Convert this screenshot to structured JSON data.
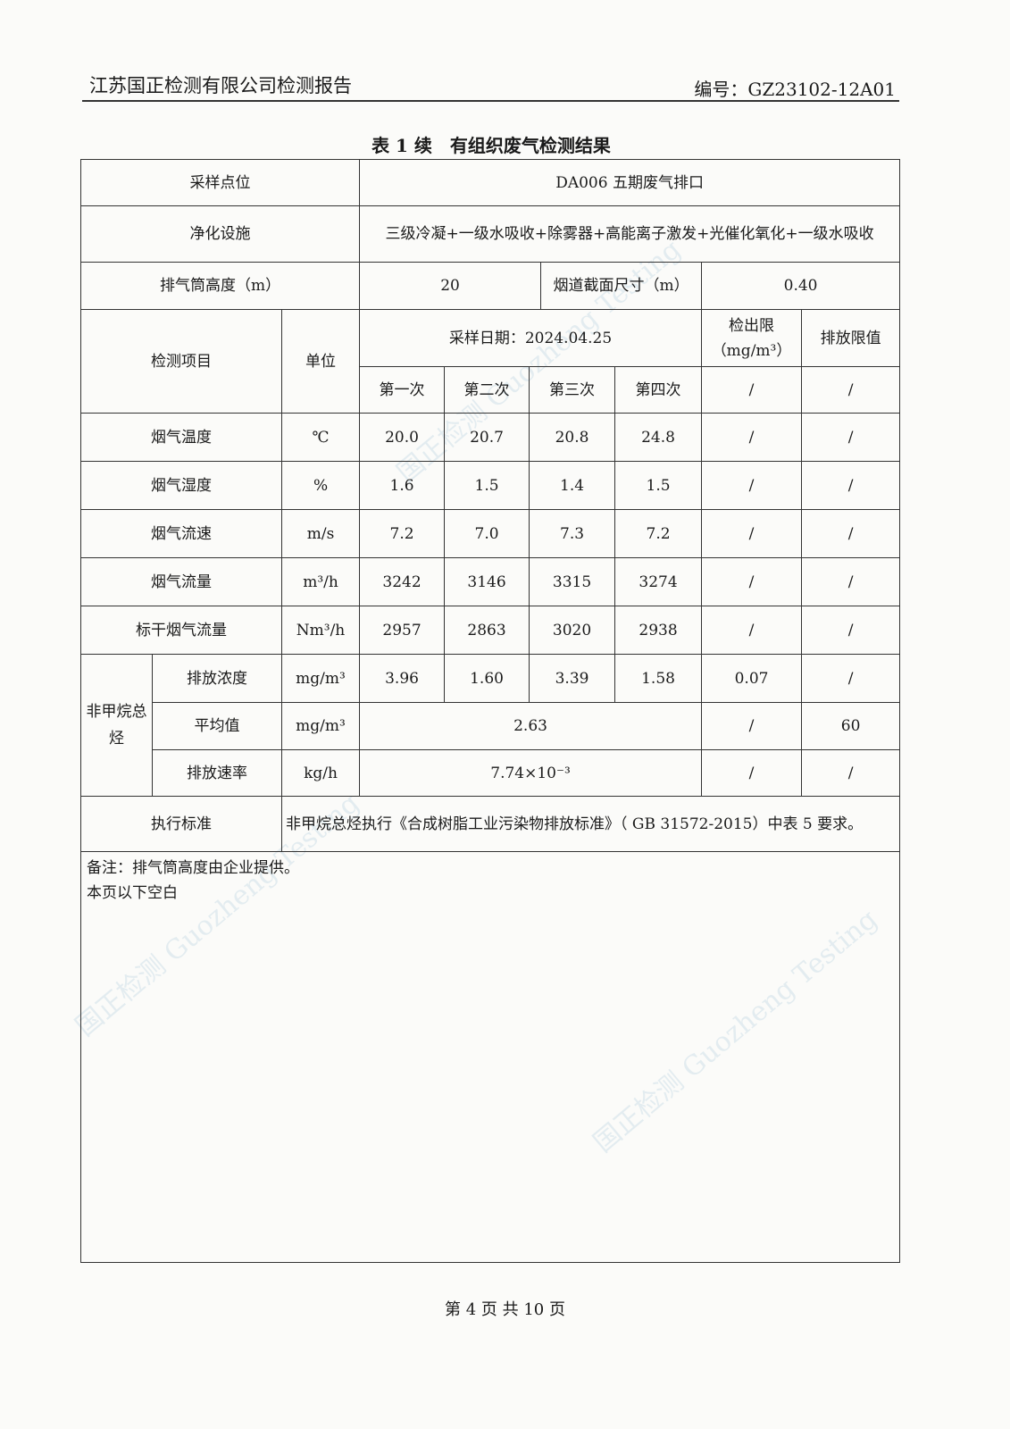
{
  "header": {
    "company": "江苏国正检测有限公司检测报告",
    "report_no": "编号：GZ23102-12A01"
  },
  "title": "表 1 续　有组织废气检测结果",
  "info": {
    "sampling_point_label": "采样点位",
    "sampling_point": "DA006 五期废气排口",
    "purification_label": "净化设施",
    "purification": "三级冷凝+一级水吸收+除雾器+高能离子激发+光催化氧化+一级水吸收",
    "stack_height_label": "排气筒高度（m）",
    "stack_height": "20",
    "duct_size_label": "烟道截面尺寸（m）",
    "duct_size": "0.40"
  },
  "columns": {
    "item": "检测项目",
    "unit": "单位",
    "sampling_date": "采样日期：2024.04.25",
    "detection_limit": "检出限",
    "detection_limit_unit": "（mg/m³）",
    "emission_limit": "排放限值",
    "runs": [
      "第一次",
      "第二次",
      "第三次",
      "第四次"
    ],
    "dl_slash": "/",
    "el_slash": "/"
  },
  "rows": [
    {
      "item": "烟气温度",
      "unit": "℃",
      "values": [
        "20.0",
        "20.7",
        "20.8",
        "24.8"
      ],
      "dl": "/",
      "limit": "/"
    },
    {
      "item": "烟气湿度",
      "unit": "%",
      "values": [
        "1.6",
        "1.5",
        "1.4",
        "1.5"
      ],
      "dl": "/",
      "limit": "/"
    },
    {
      "item": "烟气流速",
      "unit": "m/s",
      "values": [
        "7.2",
        "7.0",
        "7.3",
        "7.2"
      ],
      "dl": "/",
      "limit": "/"
    },
    {
      "item": "烟气流量",
      "unit": "m³/h",
      "values": [
        "3242",
        "3146",
        "3315",
        "3274"
      ],
      "dl": "/",
      "limit": "/"
    },
    {
      "item": "标干烟气流量",
      "unit": "Nm³/h",
      "values": [
        "2957",
        "2863",
        "3020",
        "2938"
      ],
      "dl": "/",
      "limit": "/"
    }
  ],
  "nmhc": {
    "name": "非甲烷总烃",
    "concentration": {
      "item": "排放浓度",
      "unit": "mg/m³",
      "values": [
        "3.96",
        "1.60",
        "3.39",
        "1.58"
      ],
      "dl": "0.07",
      "limit": "/"
    },
    "average": {
      "item": "平均值",
      "unit": "mg/m³",
      "value": "2.63",
      "dl": "/",
      "limit": "60"
    },
    "rate": {
      "item": "排放速率",
      "unit": "kg/h",
      "value": "7.74×10⁻³",
      "dl": "/",
      "limit": "/"
    }
  },
  "standard": {
    "label": "执行标准",
    "text": "非甲烷总烃执行《合成树脂工业污染物排放标准》（ GB 31572-2015）中表 5 要求。"
  },
  "notes": [
    "备注：排气筒高度由企业提供。",
    "本页以下空白"
  ],
  "footer": "第 4 页 共 10 页",
  "watermark": "国正检测 Guozheng Testing"
}
